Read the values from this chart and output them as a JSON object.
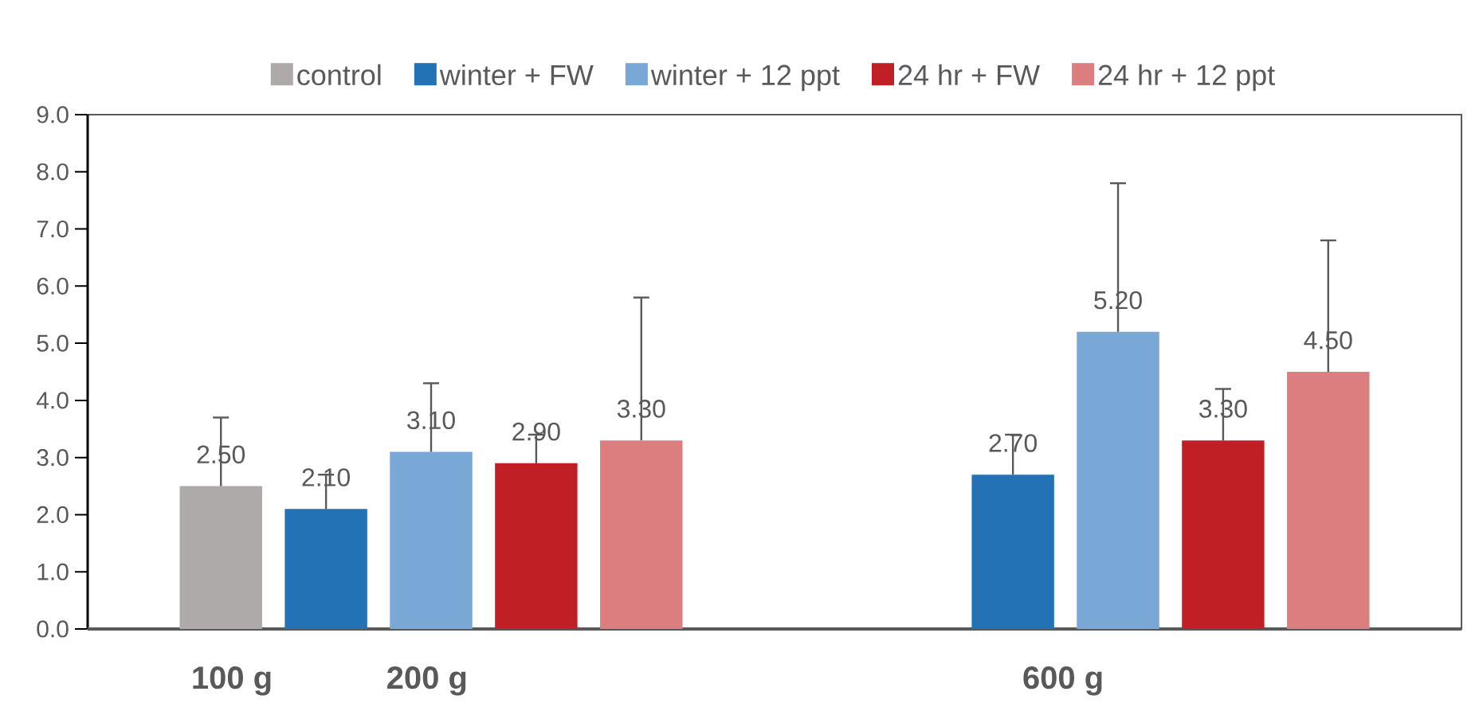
{
  "chart_data": {
    "type": "bar",
    "categories": [
      null,
      null
    ],
    "series": [
      {
        "name": "control",
        "color": "#aeaaaa",
        "values": [
          2.5,
          null
        ],
        "errors": [
          [
            2.5,
            3.7
          ],
          null
        ],
        "value_labels": [
          "2.50",
          null
        ]
      },
      {
        "name": "winter + FW",
        "color": "#2372b5",
        "values": [
          2.1,
          2.7
        ],
        "errors": [
          [
            2.1,
            2.7
          ],
          [
            2.7,
            3.4
          ]
        ],
        "value_labels": [
          "2.10",
          "2.70"
        ]
      },
      {
        "name": "winter + 12 ppt",
        "color": "#7aa8d6",
        "values": [
          3.1,
          5.2
        ],
        "errors": [
          [
            3.1,
            4.3
          ],
          [
            5.2,
            7.8
          ]
        ],
        "value_labels": [
          "3.10",
          "5.20"
        ]
      },
      {
        "name": "24 hr + FW",
        "color": "#c01f26",
        "values": [
          2.9,
          3.3
        ],
        "errors": [
          [
            2.9,
            3.4
          ],
          [
            3.3,
            4.2
          ]
        ],
        "value_labels": [
          "2.90",
          "3.30"
        ]
      },
      {
        "name": "24 hr + 12 ppt",
        "color": "#dc7e80",
        "values": [
          3.3,
          4.5
        ],
        "errors": [
          [
            3.3,
            5.8
          ],
          [
            4.5,
            6.8
          ]
        ],
        "value_labels": [
          "3.30",
          "4.50"
        ]
      }
    ],
    "ylim": [
      0,
      9
    ],
    "yticks": [
      {
        "value": 0,
        "label": "0.0"
      },
      {
        "value": 1,
        "label": "1.0"
      },
      {
        "value": 2,
        "label": "2.0"
      },
      {
        "value": 3,
        "label": "3.0"
      },
      {
        "value": 4,
        "label": "4.0"
      },
      {
        "value": 5,
        "label": "5.0"
      },
      {
        "value": 6,
        "label": "6.0"
      },
      {
        "value": 7,
        "label": "7.0"
      },
      {
        "value": 8,
        "label": "8.0"
      },
      {
        "value": 9,
        "label": "9.0"
      }
    ],
    "annotations": [
      "100 g",
      "200 g",
      "600 g"
    ],
    "legend": "top",
    "grid": false
  }
}
